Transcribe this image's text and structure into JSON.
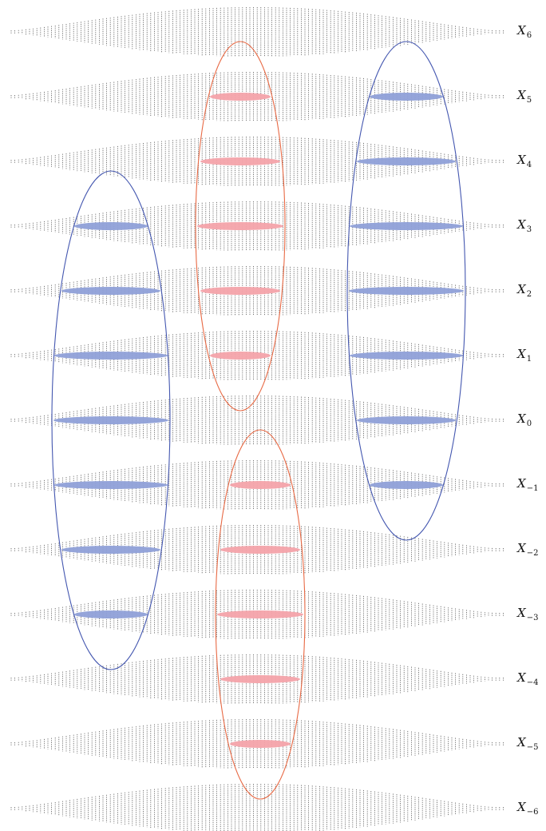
{
  "rows": [
    {
      "base": "X",
      "sub": "6"
    },
    {
      "base": "X",
      "sub": "5"
    },
    {
      "base": "X",
      "sub": "4"
    },
    {
      "base": "X",
      "sub": "3"
    },
    {
      "base": "X",
      "sub": "2"
    },
    {
      "base": "X",
      "sub": "1"
    },
    {
      "base": "X",
      "sub": "0"
    },
    {
      "base": "X",
      "sub": "−1"
    },
    {
      "base": "X",
      "sub": "−2"
    },
    {
      "base": "X",
      "sub": "−3"
    },
    {
      "base": "X",
      "sub": "−4"
    },
    {
      "base": "X",
      "sub": "−5"
    },
    {
      "base": "X",
      "sub": "−6"
    }
  ],
  "colors": {
    "blue_fill": "#8fa0d8",
    "blue_stroke": "#4457b0",
    "red_fill": "#f4a3aa",
    "red_stroke": "#e86a45",
    "tick": "#555555"
  },
  "groups": [
    {
      "color": "blue",
      "rows": [
        "X3",
        "X2",
        "X1",
        "X0",
        "X−1",
        "X−2",
        "X−3"
      ]
    },
    {
      "color": "red",
      "rows": [
        "X5",
        "X4",
        "X3",
        "X2",
        "X1"
      ]
    },
    {
      "color": "blue",
      "rows": [
        "X5",
        "X4",
        "X3",
        "X2",
        "X1",
        "X0",
        "X−1"
      ]
    },
    {
      "color": "red",
      "rows": [
        "X−1",
        "X−2",
        "X−3",
        "X−4",
        "X−5"
      ]
    }
  ]
}
